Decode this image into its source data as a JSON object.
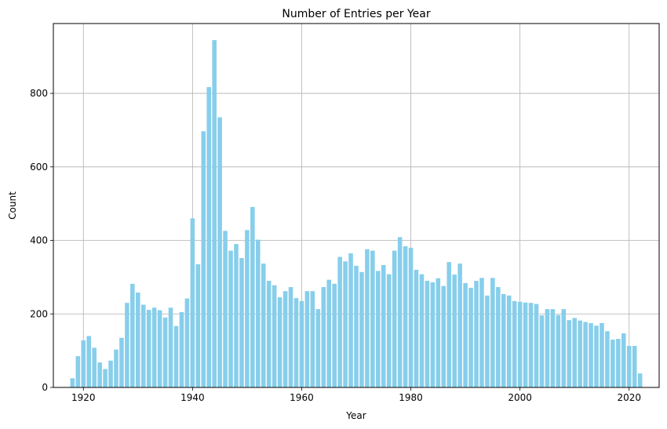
{
  "chart_data": {
    "type": "bar",
    "title": "Number of Entries per Year",
    "xlabel": "Year",
    "ylabel": "Count",
    "bar_color": "#87ceeb",
    "grid": true,
    "xlim": [
      1914.5,
      2025.5
    ],
    "ylim": [
      0,
      990
    ],
    "xticks": [
      1920,
      1940,
      1960,
      1980,
      2000,
      2020
    ],
    "yticks": [
      0,
      200,
      400,
      600,
      800
    ],
    "x": [
      1918,
      1919,
      1920,
      1921,
      1922,
      1923,
      1924,
      1925,
      1926,
      1927,
      1928,
      1929,
      1930,
      1931,
      1932,
      1933,
      1934,
      1935,
      1936,
      1937,
      1938,
      1939,
      1940,
      1941,
      1942,
      1943,
      1944,
      1945,
      1946,
      1947,
      1948,
      1949,
      1950,
      1951,
      1952,
      1953,
      1954,
      1955,
      1956,
      1957,
      1958,
      1959,
      1960,
      1961,
      1962,
      1963,
      1964,
      1965,
      1966,
      1967,
      1968,
      1969,
      1970,
      1971,
      1972,
      1973,
      1974,
      1975,
      1976,
      1977,
      1978,
      1979,
      1980,
      1981,
      1982,
      1983,
      1984,
      1985,
      1986,
      1987,
      1988,
      1989,
      1990,
      1991,
      1992,
      1993,
      1994,
      1995,
      1996,
      1997,
      1998,
      1999,
      2000,
      2001,
      2002,
      2003,
      2004,
      2005,
      2006,
      2007,
      2008,
      2009,
      2010,
      2011,
      2012,
      2013,
      2014,
      2015,
      2016,
      2017,
      2018,
      2019,
      2020,
      2021,
      2022
    ],
    "values": [
      25,
      85,
      128,
      140,
      108,
      68,
      50,
      73,
      103,
      135,
      230,
      282,
      258,
      225,
      211,
      217,
      210,
      190,
      217,
      167,
      205,
      242,
      460,
      335,
      697,
      817,
      945,
      735,
      426,
      372,
      390,
      352,
      428,
      491,
      402,
      337,
      290,
      278,
      245,
      262,
      273,
      243,
      235,
      262,
      262,
      213,
      273,
      293,
      282,
      355,
      343,
      365,
      331,
      314,
      376,
      372,
      317,
      333,
      308,
      372,
      409,
      384,
      380,
      320,
      308,
      290,
      286,
      297,
      276,
      341,
      307,
      337,
      284,
      271,
      290,
      298,
      250,
      298,
      273,
      254,
      250,
      235,
      233,
      231,
      230,
      227,
      196,
      213,
      213,
      197,
      213,
      183,
      189,
      182,
      178,
      175,
      168,
      175,
      153,
      130,
      132,
      147,
      113,
      113,
      38
    ]
  }
}
